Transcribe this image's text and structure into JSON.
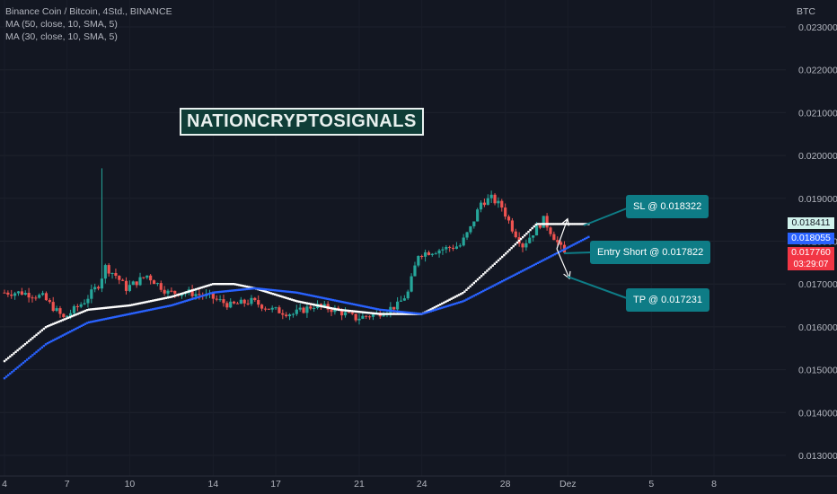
{
  "legend": {
    "symbol": "Binance Coin / Bitcoin, 4Std., BINANCE",
    "ma50": "MA (50, close, 10, SMA, 5)",
    "ma30": "MA (30, close, 10, SMA, 5)"
  },
  "badge": "NATIONCRYPTOSIGNALS",
  "currency": "BTC",
  "price_tags": {
    "ma_white": "0.018411",
    "ma_blue": "0.018055",
    "last_price": "0.017760",
    "countdown": "03:29:07"
  },
  "annotations": {
    "sl": "SL @ 0.018322",
    "entry": "Entry Short @ 0.017822",
    "tp": "TP @ 0.017231"
  },
  "colors": {
    "background": "#131722",
    "up": "#26a69a",
    "down": "#ef5350",
    "ma_white": "#ffffff",
    "ma_blue": "#2962ff",
    "annotation": "#0e7c86"
  },
  "chart_data": {
    "type": "candlestick",
    "y_axis": {
      "ticks": [
        "0.023000",
        "0.022000",
        "0.021000",
        "0.020000",
        "0.019000",
        "0.018000",
        "0.017000",
        "0.016000",
        "0.015000",
        "0.014000",
        "0.013000"
      ],
      "range": [
        0.0127,
        0.0235
      ]
    },
    "x_axis": {
      "ticks": [
        {
          "label": "4",
          "day": 4
        },
        {
          "label": "7",
          "day": 7
        },
        {
          "label": "10",
          "day": 10
        },
        {
          "label": "14",
          "day": 14
        },
        {
          "label": "17",
          "day": 17
        },
        {
          "label": "21",
          "day": 21
        },
        {
          "label": "24",
          "day": 24
        },
        {
          "label": "28",
          "day": 28
        },
        {
          "label": "Dez",
          "day": 31
        },
        {
          "label": "5",
          "day": 35
        },
        {
          "label": "8",
          "day": 38
        }
      ]
    },
    "price_path": [
      [
        4,
        0.0168
      ],
      [
        5,
        0.0168
      ],
      [
        6,
        0.0167
      ],
      [
        7,
        0.0162
      ],
      [
        8,
        0.0166
      ],
      [
        8.7,
        0.017
      ],
      [
        9,
        0.0174
      ],
      [
        9.5,
        0.0172
      ],
      [
        10,
        0.0169
      ],
      [
        11,
        0.0172
      ],
      [
        12,
        0.0168
      ],
      [
        13,
        0.0168
      ],
      [
        14,
        0.0167
      ],
      [
        15,
        0.0165
      ],
      [
        16,
        0.0166
      ],
      [
        17,
        0.0164
      ],
      [
        18,
        0.0163
      ],
      [
        19,
        0.0165
      ],
      [
        20,
        0.0164
      ],
      [
        21,
        0.0162
      ],
      [
        22,
        0.0163
      ],
      [
        23,
        0.0165
      ],
      [
        23.5,
        0.0168
      ],
      [
        24,
        0.0177
      ],
      [
        25,
        0.0178
      ],
      [
        26,
        0.0179
      ],
      [
        26.5,
        0.0183
      ],
      [
        27,
        0.0189
      ],
      [
        27.5,
        0.019
      ],
      [
        28,
        0.0188
      ],
      [
        28.5,
        0.0183
      ],
      [
        29,
        0.0179
      ],
      [
        30,
        0.0185
      ],
      [
        30.5,
        0.0181
      ],
      [
        31,
        0.0177
      ]
    ],
    "volatility_spikes": [
      {
        "day": 8.7,
        "high": 0.0197
      }
    ],
    "series": [
      {
        "name": "MA (50, close, 10, SMA, 5)",
        "color": "#ffffff",
        "points": [
          [
            4,
            0.0152
          ],
          [
            6,
            0.016
          ],
          [
            8,
            0.0164
          ],
          [
            10,
            0.0165
          ],
          [
            12,
            0.0167
          ],
          [
            14,
            0.017
          ],
          [
            15,
            0.017
          ],
          [
            16,
            0.0169
          ],
          [
            18,
            0.0166
          ],
          [
            20,
            0.0164
          ],
          [
            22,
            0.0163
          ],
          [
            24,
            0.0163
          ],
          [
            26,
            0.0168
          ],
          [
            28,
            0.0177
          ],
          [
            29.5,
            0.0184
          ],
          [
            31,
            0.0184
          ],
          [
            32,
            0.0184
          ]
        ]
      },
      {
        "name": "MA (30, close, 10, SMA, 5)",
        "color": "#2962ff",
        "points": [
          [
            4,
            0.0148
          ],
          [
            6,
            0.0156
          ],
          [
            8,
            0.0161
          ],
          [
            10,
            0.0163
          ],
          [
            12,
            0.0165
          ],
          [
            14,
            0.0168
          ],
          [
            16,
            0.0169
          ],
          [
            18,
            0.0168
          ],
          [
            20,
            0.0166
          ],
          [
            22,
            0.0164
          ],
          [
            24,
            0.0163
          ],
          [
            26,
            0.0166
          ],
          [
            28,
            0.0171
          ],
          [
            30,
            0.0176
          ],
          [
            32,
            0.0181
          ]
        ]
      }
    ],
    "trade_levels": {
      "sl": 0.018322,
      "entry": 0.017822,
      "tp": 0.017231
    }
  }
}
